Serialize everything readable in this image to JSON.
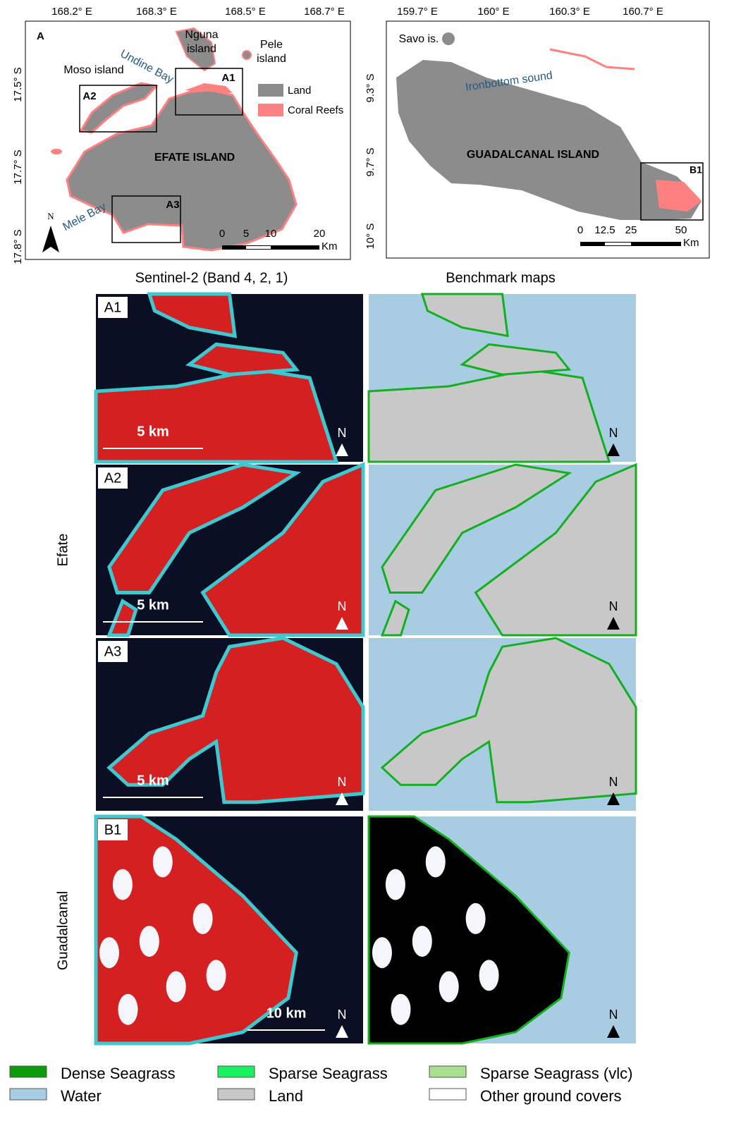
{
  "map_a": {
    "label": "A",
    "lon_ticks": [
      "168.2° E",
      "168.3° E",
      "168.5° E",
      "168.7° E"
    ],
    "lat_ticks": [
      "17.5° S",
      "17.7° S",
      "17.8° S"
    ],
    "places": [
      "Nguna",
      "island",
      "Pele",
      "island",
      "Moso island",
      "Undine Bay",
      "EFATE ISLAND",
      "Mele Bay"
    ],
    "legend": [
      {
        "name": "Land",
        "color": "#8c8c8c"
      },
      {
        "name": "Coral Reefs",
        "color": "#ff8080"
      }
    ],
    "boxes": [
      "A1",
      "A2",
      "A3"
    ],
    "scale": [
      "0",
      "5",
      "10",
      "20"
    ],
    "scale_unit": "Km",
    "north": "N"
  },
  "map_b": {
    "lon_ticks": [
      "159.7° E",
      "160° E",
      "160.3° E",
      "160.7° E"
    ],
    "lat_ticks": [
      "9.3° S",
      "9.7° S",
      "10° S"
    ],
    "places": [
      "Savo is.",
      "Ironbottom sound",
      "GUADALCANAL ISLAND"
    ],
    "boxes": [
      "B1"
    ],
    "scale": [
      "0",
      "12.5",
      "25",
      "50"
    ],
    "scale_unit": "Km"
  },
  "column_titles": [
    "Sentinel-2 (Band 4, 2, 1)",
    "Benchmark maps"
  ],
  "row_labels": [
    "Efate",
    "Guadalcanal"
  ],
  "panels": [
    {
      "label": "A1",
      "scale": "5 km",
      "north": "N"
    },
    {
      "label": "A2",
      "scale": "5 km",
      "north": "N"
    },
    {
      "label": "A3",
      "scale": "5 km",
      "north": "N"
    },
    {
      "label": "B1",
      "scale": "10 km",
      "north": "N"
    }
  ],
  "legend": [
    {
      "name": "Dense Seagrass",
      "color": "#0a9a0a"
    },
    {
      "name": "Sparse Seagrass",
      "color": "#19f060"
    },
    {
      "name": "Sparse Seagrass (vlc)",
      "color": "#a8e090"
    },
    {
      "name": "Water",
      "color": "#a8cde2"
    },
    {
      "name": "Land",
      "color": "#c8c8c8"
    },
    {
      "name": "Other ground covers",
      "color": "#ffffff"
    }
  ]
}
